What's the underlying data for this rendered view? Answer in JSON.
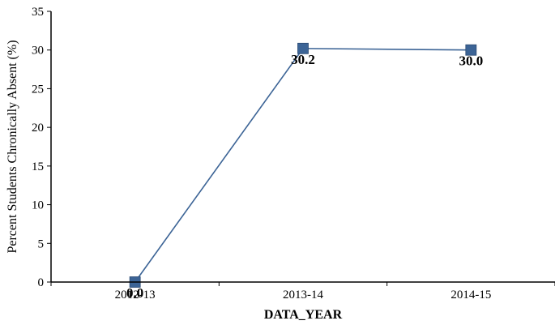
{
  "chart_data": {
    "type": "line",
    "title": "",
    "xlabel": "DATA_YEAR",
    "ylabel": "Percent Students Chronically Absent (%)",
    "categories": [
      "2012-13",
      "2013-14",
      "2014-15"
    ],
    "x_tick_labels": [
      "2012-13",
      "2013-14",
      "2014-15"
    ],
    "series": [
      {
        "values": [
          0.0,
          30.2,
          30.0
        ],
        "data_labels": [
          "0.0",
          "30.2",
          "30.0"
        ],
        "color": "#3C6496",
        "marker": "square"
      }
    ],
    "ylim": [
      0,
      35
    ],
    "y_ticks": [
      0,
      5,
      10,
      15,
      20,
      25,
      30,
      35
    ],
    "y_tick_labels": [
      "0",
      "5",
      "10",
      "15",
      "20",
      "25",
      "30",
      "35"
    ],
    "grid": false,
    "legend": "none"
  }
}
